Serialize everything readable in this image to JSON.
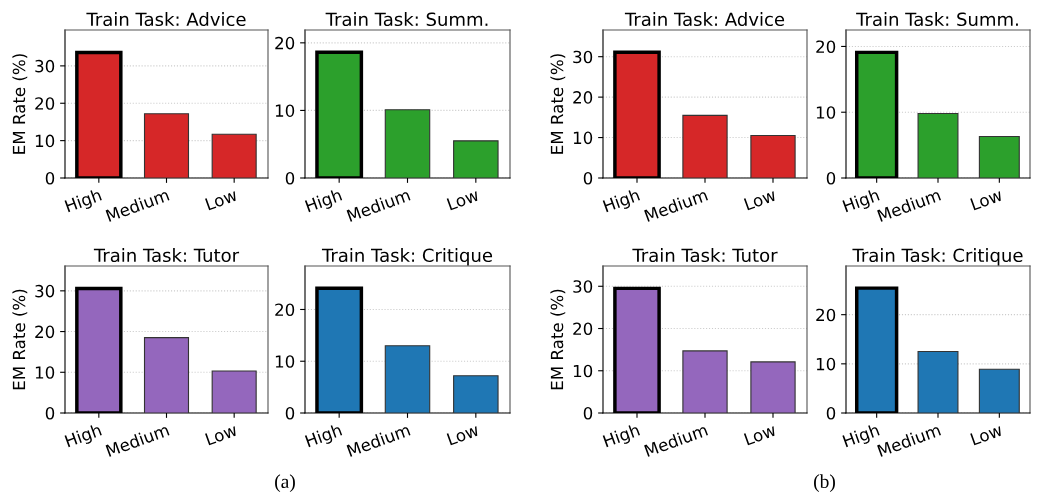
{
  "chart_data": [
    {
      "type": "bar",
      "title": "Train Task: Advice",
      "ylabel": "EM Rate (%)",
      "categories": [
        "High",
        "Medium",
        "Low"
      ],
      "values": [
        33.6,
        17.2,
        11.7
      ],
      "color": "#d62728",
      "ylim": [
        0,
        39.6
      ],
      "yticks": [
        0,
        10,
        20,
        30
      ],
      "grid": "y"
    },
    {
      "type": "bar",
      "title": "Train Task: Summ.",
      "categories": [
        "High",
        "Medium",
        "Low"
      ],
      "values": [
        18.6,
        10.1,
        5.5
      ],
      "color": "#2ca02c",
      "ylim": [
        0,
        21.9
      ],
      "yticks": [
        0,
        10,
        20
      ],
      "grid": "y"
    },
    {
      "type": "bar",
      "title": "Train Task: Advice",
      "ylabel": "EM Rate (%)",
      "categories": [
        "High",
        "Medium",
        "Low"
      ],
      "values": [
        31.1,
        15.5,
        10.5
      ],
      "color": "#d62728",
      "ylim": [
        0,
        36.6
      ],
      "yticks": [
        0,
        10,
        20,
        30
      ],
      "grid": "y"
    },
    {
      "type": "bar",
      "title": "Train Task: Summ.",
      "categories": [
        "High",
        "Medium",
        "Low"
      ],
      "values": [
        19.1,
        9.8,
        6.3
      ],
      "color": "#2ca02c",
      "ylim": [
        0,
        22.5
      ],
      "yticks": [
        0,
        10,
        20
      ],
      "grid": "y"
    },
    {
      "type": "bar",
      "title": "Train Task: Tutor",
      "ylabel": "EM Rate (%)",
      "categories": [
        "High",
        "Medium",
        "Low"
      ],
      "values": [
        30.6,
        18.5,
        10.3
      ],
      "color": "#9467bd",
      "ylim": [
        0,
        36.1
      ],
      "yticks": [
        0,
        10,
        20,
        30
      ],
      "grid": "y",
      "annotations": [
        "(a)"
      ]
    },
    {
      "type": "bar",
      "title": "Train Task: Critique",
      "categories": [
        "High",
        "Medium",
        "Low"
      ],
      "values": [
        24.1,
        13.0,
        7.2
      ],
      "color": "#1f77b4",
      "ylim": [
        0,
        28.4
      ],
      "yticks": [
        0,
        10,
        20
      ],
      "grid": "y"
    },
    {
      "type": "bar",
      "title": "Train Task: Tutor",
      "ylabel": "EM Rate (%)",
      "categories": [
        "High",
        "Medium",
        "Low"
      ],
      "values": [
        29.5,
        14.7,
        12.1
      ],
      "color": "#9467bd",
      "ylim": [
        0,
        34.8
      ],
      "yticks": [
        0,
        10,
        20,
        30
      ],
      "grid": "y",
      "annotations": [
        "(b)"
      ]
    },
    {
      "type": "bar",
      "title": "Train Task: Critique",
      "categories": [
        "High",
        "Medium",
        "Low"
      ],
      "values": [
        25.4,
        12.5,
        8.9
      ],
      "color": "#1f77b4",
      "ylim": [
        0,
        29.9
      ],
      "yticks": [
        0,
        10,
        20
      ],
      "grid": "y"
    }
  ]
}
